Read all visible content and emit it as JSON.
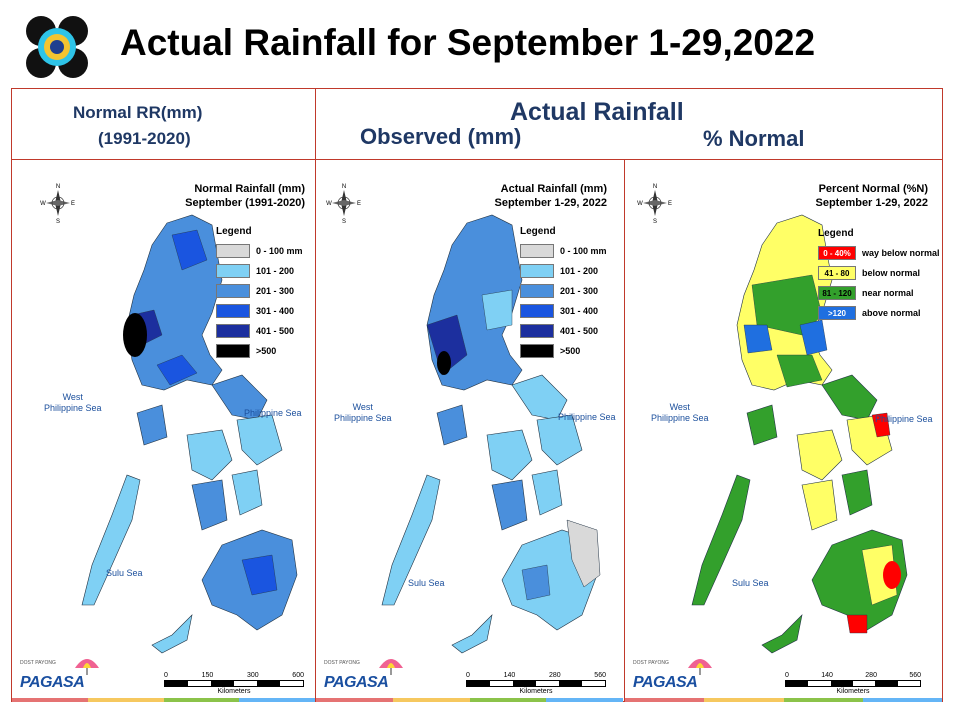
{
  "title": "Actual Rainfall for September 1-29,2022",
  "header": {
    "normal_line1": "Normal RR(mm)",
    "normal_line2": "(1991-2020)",
    "actual": "Actual Rainfall",
    "observed": "Observed (mm)",
    "percent": "% Normal"
  },
  "maps": {
    "normal": {
      "title_line1": "Normal Rainfall (mm)",
      "title_line2": "September (1991-2020)",
      "legend_title": "Legend",
      "legend": [
        {
          "label": "0 - 100 mm",
          "color": "#d9d9d9"
        },
        {
          "label": "101 - 200",
          "color": "#7fd0f4"
        },
        {
          "label": "201 - 300",
          "color": "#4a8fdc"
        },
        {
          "label": "301 - 400",
          "color": "#1a55e0"
        },
        {
          "label": "401 - 500",
          "color": "#1c2f9e"
        },
        {
          "label": ">500",
          "color": "#000000"
        }
      ],
      "scale_ticks": [
        "0",
        "150",
        "300",
        "600"
      ],
      "scale_unit": "Kilometers"
    },
    "actual": {
      "title_line1": "Actual Rainfall (mm)",
      "title_line2": "September 1-29, 2022",
      "legend_title": "Legend",
      "legend": [
        {
          "label": "0 - 100 mm",
          "color": "#d9d9d9"
        },
        {
          "label": "101 - 200",
          "color": "#7fd0f4"
        },
        {
          "label": "201 - 300",
          "color": "#4a8fdc"
        },
        {
          "label": "301 - 400",
          "color": "#1a55e0"
        },
        {
          "label": "401 - 500",
          "color": "#1c2f9e"
        },
        {
          "label": ">500",
          "color": "#000000"
        }
      ],
      "scale_ticks": [
        "0",
        "140",
        "280",
        "560"
      ],
      "scale_unit": "Kilometers"
    },
    "percent": {
      "title_line1": "Percent Normal (%N)",
      "title_line2": "September 1-29, 2022",
      "legend_title": "Legend",
      "legend": [
        {
          "range": "0 - 40%",
          "label": "way below normal",
          "color": "#ff0000"
        },
        {
          "range": "41 - 80",
          "label": "below normal",
          "color": "#ffff66"
        },
        {
          "range": "81 - 120",
          "label": "near normal",
          "color": "#33a02c"
        },
        {
          "range": ">120",
          "label": "above normal",
          "color": "#1f6fe0"
        }
      ],
      "scale_ticks": [
        "0",
        "140",
        "280",
        "560"
      ],
      "scale_unit": "Kilometers"
    }
  },
  "seas": {
    "west_line1": "West",
    "west_line2": "Philippine Sea",
    "philippine": "Philippine Sea",
    "sulu": "Sulu Sea"
  },
  "compass": {
    "n": "N",
    "s": "S",
    "e": "E",
    "w": "W"
  },
  "logo": {
    "sub": "DOST  PAYONG",
    "name": "PAGASA"
  },
  "colors": {
    "header_blue": "#1f3864",
    "frame_red": "#c0392b",
    "strip": [
      "#e57373",
      "#f6c85f",
      "#8bc34a",
      "#64b5f6"
    ]
  }
}
